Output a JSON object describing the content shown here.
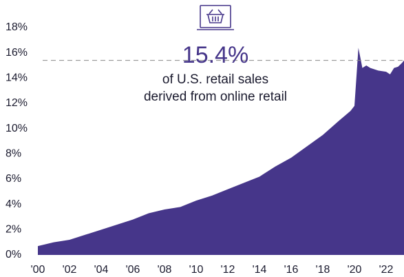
{
  "chart_data": {
    "type": "area",
    "color": "#46368a",
    "x": [
      2000,
      2001,
      2002,
      2003,
      2004,
      2005,
      2006,
      2007,
      2008,
      2009,
      2010,
      2011,
      2012,
      2013,
      2014,
      2015,
      2016,
      2017,
      2018,
      2019,
      2019.75,
      2020.0,
      2020.25,
      2020.5,
      2020.75,
      2021.0,
      2021.5,
      2022.0,
      2022.25,
      2022.5,
      2022.75,
      2023.0,
      2023.13
    ],
    "values": [
      0.7,
      1.0,
      1.2,
      1.6,
      2.0,
      2.4,
      2.8,
      3.3,
      3.6,
      3.8,
      4.3,
      4.7,
      5.2,
      5.7,
      6.2,
      7.0,
      7.7,
      8.6,
      9.5,
      10.6,
      11.4,
      11.8,
      16.4,
      14.8,
      15.0,
      14.8,
      14.6,
      14.5,
      14.3,
      14.8,
      14.9,
      15.2,
      15.4
    ],
    "xlim": [
      2000,
      2023.13
    ],
    "ylim": [
      0,
      18
    ],
    "yticks": [
      {
        "value": 0,
        "label": "0%"
      },
      {
        "value": 2,
        "label": "2%"
      },
      {
        "value": 4,
        "label": "4%"
      },
      {
        "value": 6,
        "label": "6%"
      },
      {
        "value": 8,
        "label": "8%"
      },
      {
        "value": 10,
        "label": "10%"
      },
      {
        "value": 12,
        "label": "12%"
      },
      {
        "value": 14,
        "label": "14%"
      },
      {
        "value": 16,
        "label": "16%"
      },
      {
        "value": 18,
        "label": "18%"
      }
    ],
    "xticks": [
      {
        "value": 2000,
        "label": "'00"
      },
      {
        "value": 2002,
        "label": "'02"
      },
      {
        "value": 2004,
        "label": "'04"
      },
      {
        "value": 2006,
        "label": "'06"
      },
      {
        "value": 2008,
        "label": "'08"
      },
      {
        "value": 2010,
        "label": "'10"
      },
      {
        "value": 2012,
        "label": "'12"
      },
      {
        "value": 2014,
        "label": "'14"
      },
      {
        "value": 2016,
        "label": "'16"
      },
      {
        "value": 2018,
        "label": "'18"
      },
      {
        "value": 2020,
        "label": "'20"
      },
      {
        "value": 2022,
        "label": "'22"
      }
    ],
    "annotation": {
      "value": 15.4,
      "label": "15.4%"
    },
    "annotation_text": [
      "of U.S. retail sales",
      "derived from online retail"
    ]
  }
}
